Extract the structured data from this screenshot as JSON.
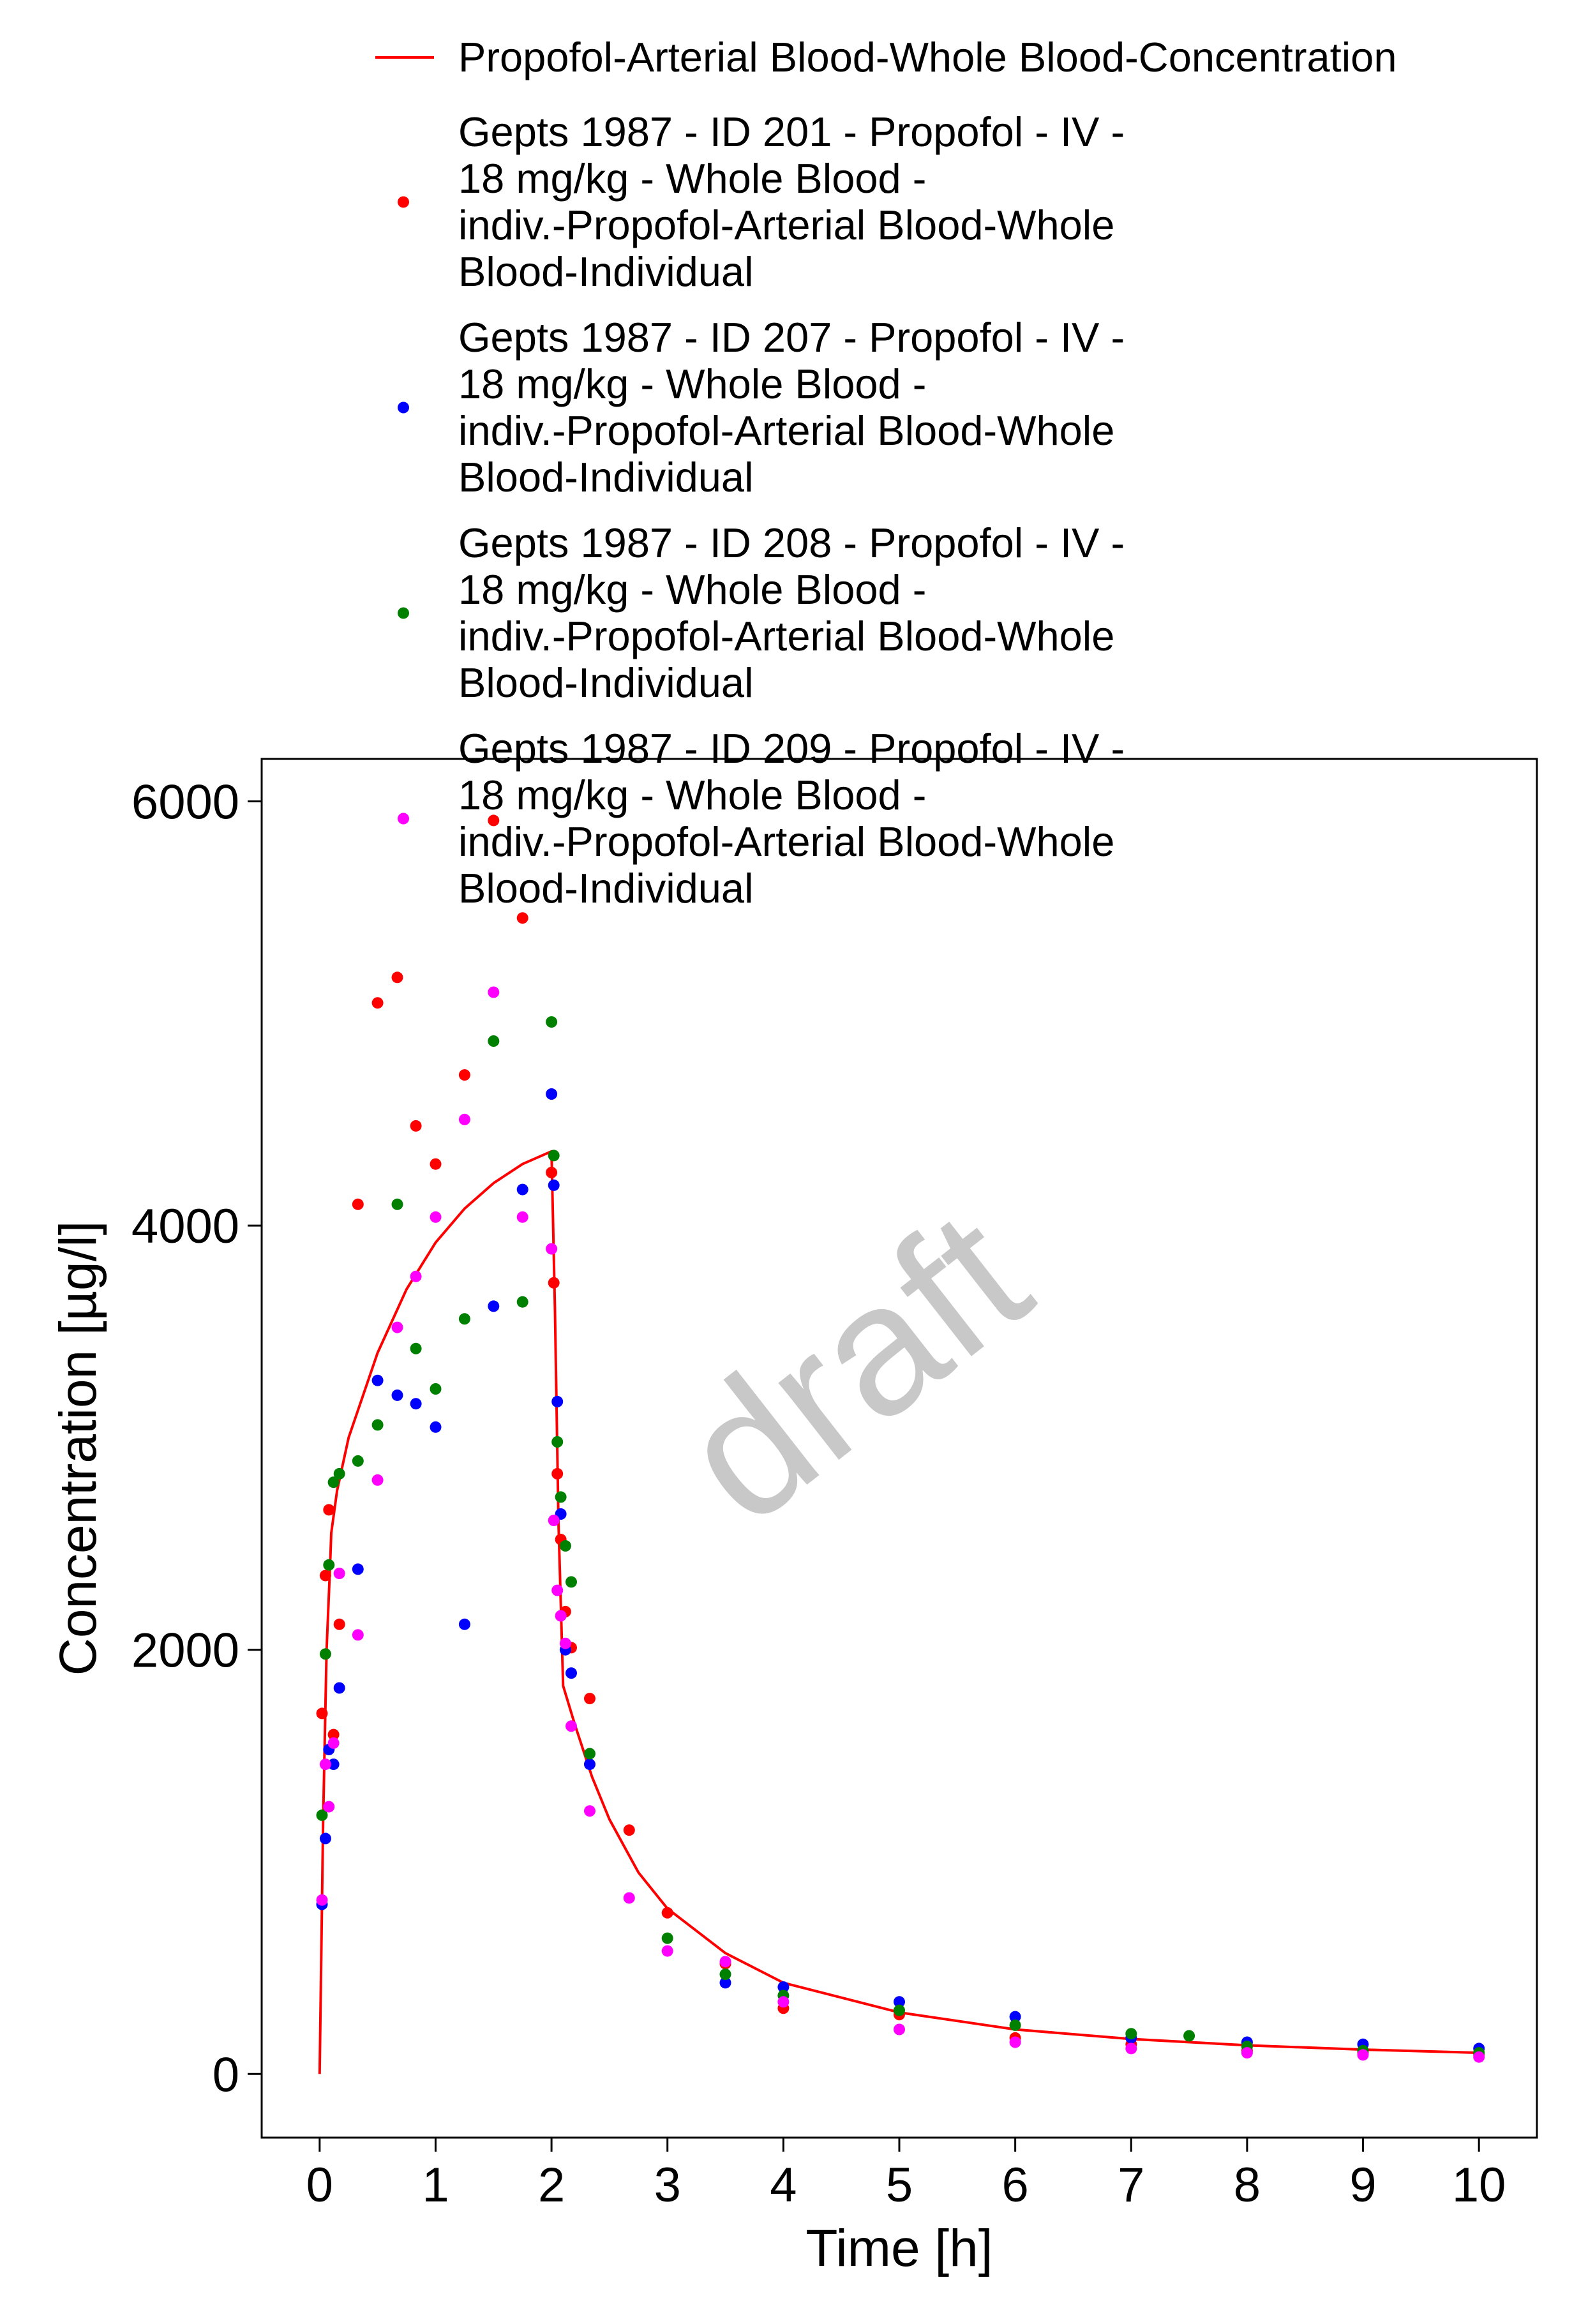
{
  "chart_data": {
    "type": "scatter",
    "xlabel": "Time [h]",
    "ylabel": "Concentration [µg/l]",
    "xlim": [
      -0.5,
      10.5
    ],
    "ylim": [
      -300,
      6200
    ],
    "xticks": [
      "0",
      "1",
      "2",
      "3",
      "4",
      "5",
      "6",
      "7",
      "8",
      "9",
      "10"
    ],
    "yticks": [
      "0",
      "2000",
      "4000",
      "6000"
    ],
    "grid": false,
    "legend_position": "top",
    "watermark": "draft",
    "series": [
      {
        "name": "Propofol-Arterial Blood-Whole Blood-Concentration",
        "kind": "line",
        "color": "#ff0000",
        "x": [
          0,
          0.03,
          0.06,
          0.09,
          0.1,
          0.15,
          0.25,
          0.5,
          0.75,
          1.0,
          1.25,
          1.5,
          1.75,
          2.0,
          2.03,
          2.06,
          2.1,
          2.2,
          2.35,
          2.5,
          2.75,
          3.0,
          3.5,
          4.0,
          5.0,
          6.0,
          7.0,
          8.0,
          9.0,
          10.0
        ],
        "y": [
          0,
          1200,
          2000,
          2400,
          2550,
          2750,
          3000,
          3400,
          3700,
          3920,
          4080,
          4200,
          4290,
          4350,
          3600,
          2600,
          1830,
          1650,
          1400,
          1200,
          950,
          780,
          570,
          430,
          290,
          210,
          165,
          135,
          115,
          100
        ]
      },
      {
        "name": "Gepts 1987 - ID 201 - Propofol - IV - 18 mg/kg - Whole Blood - indiv.-Propofol-Arterial Blood-Whole Blood-Individual",
        "kind": "points",
        "color": "#ff0000",
        "x": [
          0.02,
          0.05,
          0.08,
          0.12,
          0.17,
          0.33,
          0.5,
          0.67,
          0.83,
          1.0,
          1.25,
          1.5,
          1.75,
          2.0,
          2.02,
          2.05,
          2.08,
          2.12,
          2.17,
          2.33,
          2.67,
          3.0,
          3.5,
          4.0,
          5.0,
          6.0,
          7.0,
          8.0,
          9.0,
          10.0
        ],
        "y": [
          1700,
          2350,
          2660,
          1600,
          2120,
          4100,
          5050,
          5170,
          4470,
          4290,
          4710,
          5910,
          5450,
          4250,
          3730,
          2830,
          2520,
          2180,
          2010,
          1770,
          1150,
          760,
          520,
          310,
          280,
          170,
          140,
          110,
          100,
          90
        ]
      },
      {
        "name": "Gepts 1987 - ID 207 - Propofol - IV - 18 mg/kg - Whole Blood - indiv.-Propofol-Arterial Blood-Whole Blood-Individual",
        "kind": "points",
        "color": "#0000ff",
        "x": [
          0.02,
          0.05,
          0.08,
          0.12,
          0.17,
          0.33,
          0.5,
          0.67,
          0.83,
          1.0,
          1.25,
          1.5,
          1.75,
          2.0,
          2.02,
          2.05,
          2.08,
          2.12,
          2.17,
          2.33,
          3.5,
          4.0,
          5.0,
          6.0,
          7.0,
          8.0,
          9.0,
          10.0
        ],
        "y": [
          800,
          1110,
          1530,
          1460,
          1820,
          2380,
          3270,
          3200,
          3160,
          3050,
          2120,
          3620,
          4170,
          4620,
          4190,
          3170,
          2640,
          2000,
          1890,
          1460,
          430,
          410,
          340,
          270,
          170,
          150,
          140,
          120
        ]
      },
      {
        "name": "Gepts 1987 - ID 208 - Propofol - IV - 18 mg/kg - Whole Blood - indiv.-Propofol-Arterial Blood-Whole Blood-Individual",
        "kind": "points",
        "color": "#008000",
        "x": [
          0.02,
          0.05,
          0.08,
          0.12,
          0.17,
          0.33,
          0.5,
          0.67,
          0.83,
          1.0,
          1.25,
          1.5,
          1.75,
          2.0,
          2.02,
          2.05,
          2.08,
          2.12,
          2.17,
          2.33,
          3.0,
          3.5,
          4.0,
          5.0,
          6.0,
          7.0,
          7.5,
          8.0,
          9.0,
          10.0
        ],
        "y": [
          1220,
          1980,
          2400,
          2790,
          2830,
          2890,
          3060,
          4100,
          3420,
          3230,
          3560,
          4870,
          3640,
          4960,
          4330,
          2980,
          2720,
          2490,
          2320,
          1510,
          640,
          470,
          370,
          300,
          230,
          190,
          180,
          130,
          110,
          100
        ]
      },
      {
        "name": "Gepts 1987 - ID 209 - Propofol - IV - 18 mg/kg - Whole Blood - indiv.-Propofol-Arterial Blood-Whole Blood-Individual",
        "kind": "points",
        "color": "#ff00ff",
        "x": [
          0.02,
          0.05,
          0.08,
          0.12,
          0.17,
          0.33,
          0.5,
          0.67,
          0.83,
          1.0,
          1.25,
          1.5,
          1.75,
          2.0,
          2.02,
          2.05,
          2.08,
          2.12,
          2.17,
          2.33,
          2.67,
          3.0,
          3.5,
          4.0,
          5.0,
          6.0,
          7.0,
          8.0,
          9.0,
          10.0
        ],
        "y": [
          820,
          1460,
          1260,
          1560,
          2360,
          2070,
          2800,
          3520,
          3760,
          4040,
          4500,
          5100,
          4040,
          3890,
          2610,
          2280,
          2160,
          2030,
          1640,
          1240,
          830,
          580,
          530,
          340,
          210,
          150,
          120,
          100,
          90,
          80
        ]
      }
    ]
  }
}
